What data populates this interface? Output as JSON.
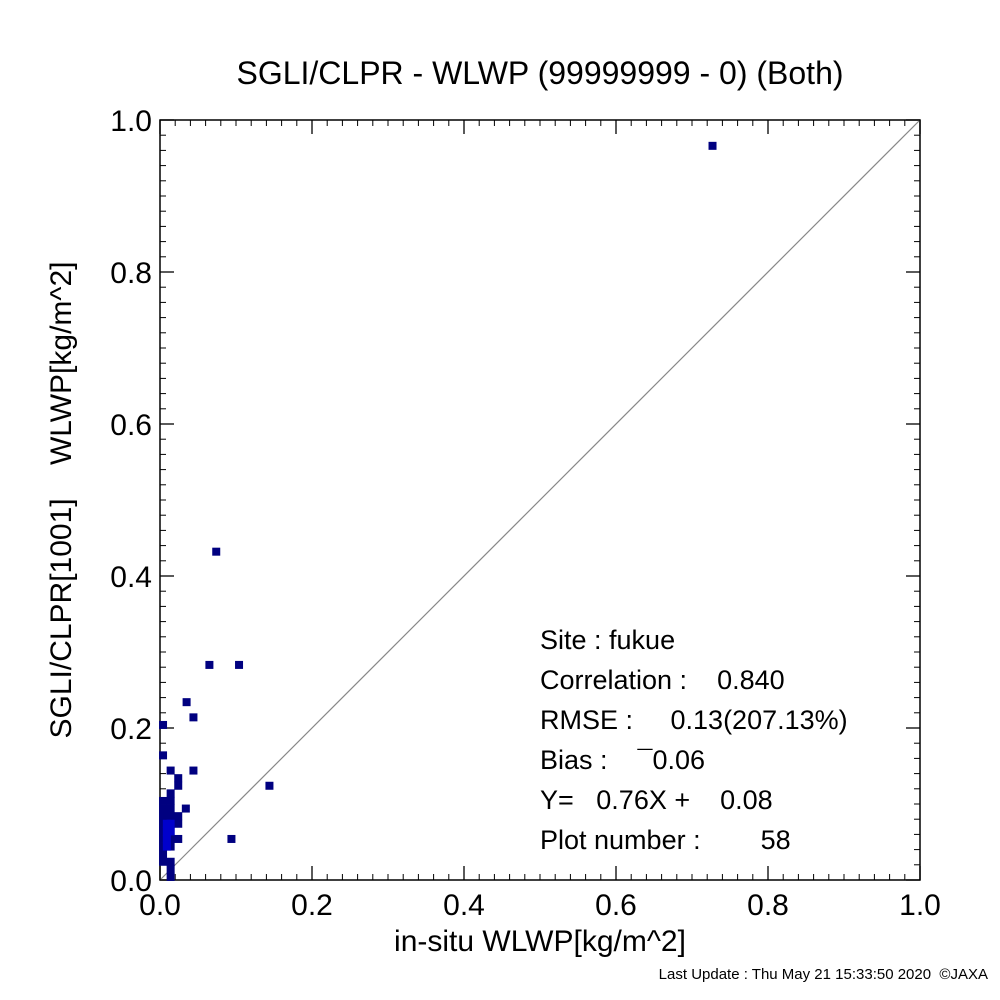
{
  "chart_data": {
    "type": "scatter",
    "title": "SGLI/CLPR - WLWP (99999999 - 0) (Both)",
    "xlabel": "in-situ WLWP[kg/m^2]",
    "ylabel": "SGLI/CLPR[1001]    WLWP[kg/m^2]",
    "xlim": [
      0.0,
      1.0
    ],
    "ylim": [
      0.0,
      1.0
    ],
    "xticks": [
      "0.0",
      "0.2",
      "0.4",
      "0.6",
      "0.8",
      "1.0"
    ],
    "yticks": [
      "0.0",
      "0.2",
      "0.4",
      "0.6",
      "0.8",
      "1.0"
    ],
    "one_to_one_line": true,
    "grid": false,
    "marker_color": "#000080",
    "dense_marker_color": "#0000cc",
    "points": [
      {
        "x": 0.727,
        "y": 0.966
      },
      {
        "x": 0.074,
        "y": 0.432
      },
      {
        "x": 0.065,
        "y": 0.283
      },
      {
        "x": 0.104,
        "y": 0.283
      },
      {
        "x": 0.035,
        "y": 0.234
      },
      {
        "x": 0.044,
        "y": 0.214
      },
      {
        "x": 0.004,
        "y": 0.204
      },
      {
        "x": 0.004,
        "y": 0.164
      },
      {
        "x": 0.014,
        "y": 0.144
      },
      {
        "x": 0.044,
        "y": 0.144
      },
      {
        "x": 0.024,
        "y": 0.134
      },
      {
        "x": 0.024,
        "y": 0.124
      },
      {
        "x": 0.144,
        "y": 0.124
      },
      {
        "x": 0.014,
        "y": 0.114
      },
      {
        "x": 0.004,
        "y": 0.104
      },
      {
        "x": 0.014,
        "y": 0.104
      },
      {
        "x": 0.004,
        "y": 0.094
      },
      {
        "x": 0.014,
        "y": 0.094
      },
      {
        "x": 0.034,
        "y": 0.094
      },
      {
        "x": 0.004,
        "y": 0.084
      },
      {
        "x": 0.014,
        "y": 0.084
      },
      {
        "x": 0.024,
        "y": 0.084
      },
      {
        "x": 0.004,
        "y": 0.074
      },
      {
        "x": 0.009,
        "y": 0.074
      },
      {
        "x": 0.014,
        "y": 0.074
      },
      {
        "x": 0.024,
        "y": 0.074
      },
      {
        "x": 0.004,
        "y": 0.064
      },
      {
        "x": 0.009,
        "y": 0.064
      },
      {
        "x": 0.014,
        "y": 0.064
      },
      {
        "x": 0.004,
        "y": 0.054
      },
      {
        "x": 0.014,
        "y": 0.054
      },
      {
        "x": 0.024,
        "y": 0.054
      },
      {
        "x": 0.094,
        "y": 0.054
      },
      {
        "x": 0.004,
        "y": 0.044
      },
      {
        "x": 0.009,
        "y": 0.044
      },
      {
        "x": 0.014,
        "y": 0.044
      },
      {
        "x": 0.004,
        "y": 0.034
      },
      {
        "x": 0.004,
        "y": 0.024
      },
      {
        "x": 0.014,
        "y": 0.024
      },
      {
        "x": 0.014,
        "y": 0.014
      },
      {
        "x": 0.014,
        "y": 0.004
      }
    ],
    "dense_points": [
      {
        "x": 0.009,
        "y": 0.074
      },
      {
        "x": 0.009,
        "y": 0.064
      },
      {
        "x": 0.014,
        "y": 0.064
      },
      {
        "x": 0.009,
        "y": 0.054
      },
      {
        "x": 0.014,
        "y": 0.074
      },
      {
        "x": 0.009,
        "y": 0.044
      }
    ],
    "annotations": [
      "Site : fukue",
      "Correlation :    0.840",
      "RMSE :     0.13(207.13%)",
      "Bias :    ¯0.06",
      "Y=   0.76X +    0.08",
      "Plot number :        58"
    ]
  },
  "footer": "Last Update : Thu May 21 15:33:50 2020  ©JAXA"
}
